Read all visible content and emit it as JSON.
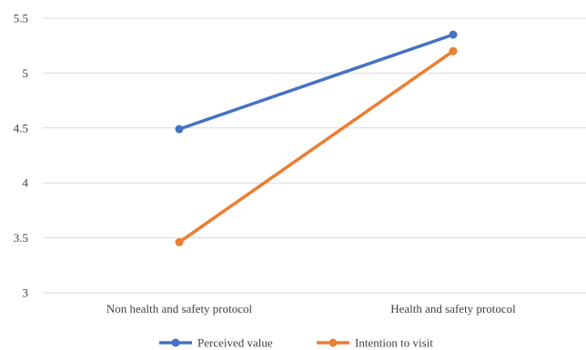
{
  "chart_data": {
    "type": "line",
    "title": "",
    "xlabel": "",
    "ylabel": "",
    "categories": [
      "Non health and safety protocol",
      "Health and safety protocol"
    ],
    "ylim": [
      3,
      5.5
    ],
    "yticks": [
      "3",
      "3.5",
      "4",
      "4.5",
      "5",
      "5.5"
    ],
    "ytick_values": [
      3,
      3.5,
      4,
      4.5,
      5,
      5.5
    ],
    "grid": true,
    "legend_position": "bottom",
    "series": [
      {
        "name": "Perceived value",
        "values": [
          4.49,
          5.35
        ],
        "color": "#4472C4"
      },
      {
        "name": "Intention to visit",
        "values": [
          3.46,
          5.2
        ],
        "color": "#ED7D31"
      }
    ]
  }
}
